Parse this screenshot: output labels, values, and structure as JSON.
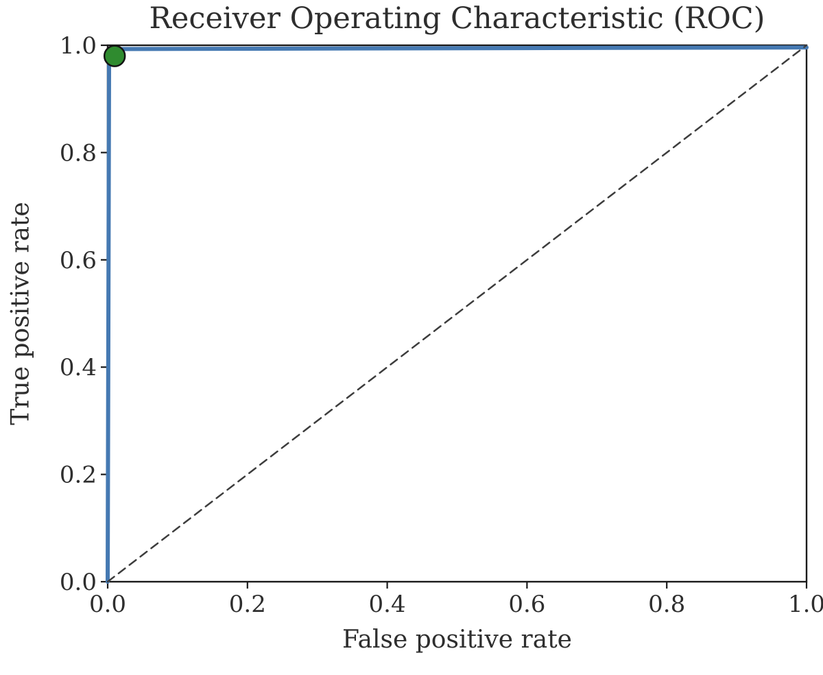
{
  "chart_data": {
    "type": "line",
    "title": "Receiver Operating Characteristic (ROC)",
    "xlabel": "False positive rate",
    "ylabel": "True positive rate",
    "xlim": [
      0,
      1
    ],
    "ylim": [
      0,
      1
    ],
    "xtick_labels": [
      "0.0",
      "0.2",
      "0.4",
      "0.6",
      "0.8",
      "1.0"
    ],
    "ytick_labels": [
      "0.0",
      "0.2",
      "0.4",
      "0.6",
      "0.8",
      "1.0"
    ],
    "grid": false,
    "legend": "none",
    "frame_color": "#1a1a1a",
    "text_color": "#2e2e2e",
    "series": [
      {
        "id": "roc-curve",
        "name": "ROC curve",
        "style": "solid",
        "color": "#4579b2",
        "width": 6,
        "points": [
          [
            0.0,
            0.0
          ],
          [
            0.002,
            0.97
          ],
          [
            0.004,
            0.988
          ],
          [
            0.01,
            0.993
          ],
          [
            1.0,
            0.996
          ]
        ]
      },
      {
        "id": "chance-diagonal",
        "name": "Chance diagonal",
        "style": "dashed",
        "dash": "12 8",
        "color": "#3d3d3d",
        "width": 2.5,
        "points": [
          [
            0.0,
            0.0
          ],
          [
            1.0,
            1.0
          ]
        ]
      }
    ],
    "markers": [
      {
        "name": "optimal-operating-point",
        "x": 0.01,
        "y": 0.98,
        "radius": 15,
        "fill": "#2f8b2f",
        "stroke": "#141414",
        "stroke_width": 2.5
      }
    ]
  }
}
